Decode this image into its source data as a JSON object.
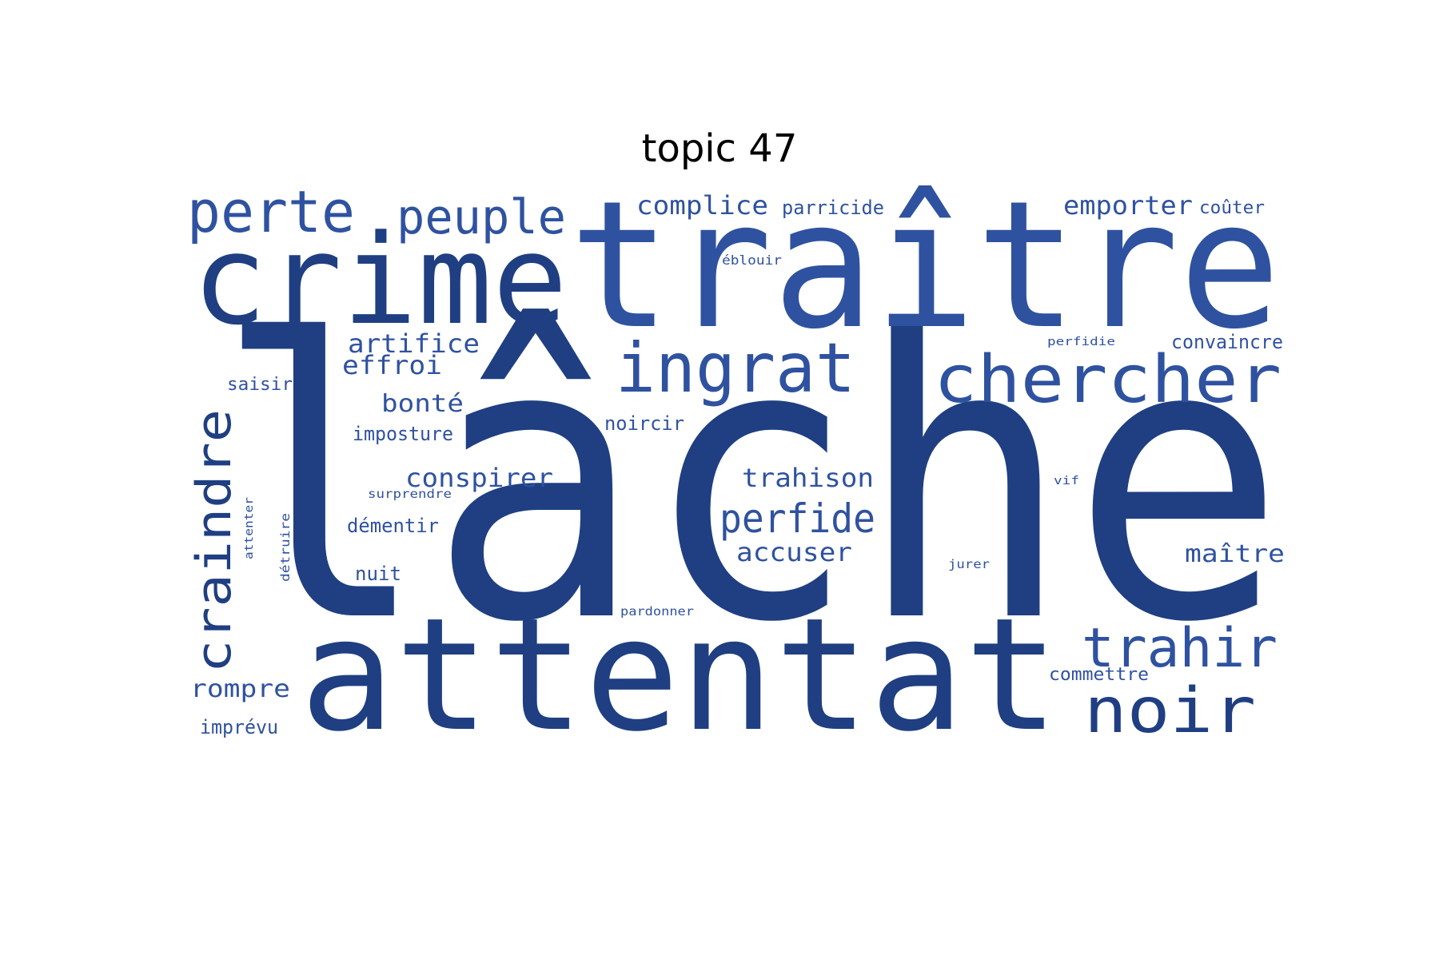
{
  "title": "topic 47",
  "word_color": "#1f3f82",
  "word_color_light": "#2f52a0",
  "words": {
    "lache": "lâche",
    "traitre": "traître",
    "crime": "crime",
    "attentat": "attentat",
    "perte": "perte",
    "peuple": "peuple",
    "complice": "complice",
    "parricide": "parricide",
    "emporter": "emporter",
    "couter": "coûter",
    "eblouir": "éblouir",
    "ingrat": "ingrat",
    "chercher": "chercher",
    "artifice": "artifice",
    "effroi": "effroi",
    "saisir": "saisir",
    "bonte": "bonté",
    "perfidie": "perfidie",
    "convaincre": "convaincre",
    "craindre": "craindre",
    "noircir": "noircir",
    "imposture": "imposture",
    "conspirer": "conspirer",
    "trahison": "trahison",
    "vif": "vif",
    "surprendre": "surprendre",
    "attenter": "attenter",
    "detruire": "détruire",
    "dementir": "démentir",
    "perfide": "perfide",
    "accuser": "accuser",
    "maitre": "maître",
    "jurer": "jurer",
    "nuit": "nuit",
    "pardonner": "pardonner",
    "trahir": "trahir",
    "commettre": "commettre",
    "rompre": "rompre",
    "noir": "noir",
    "imprevu": "imprévu"
  }
}
